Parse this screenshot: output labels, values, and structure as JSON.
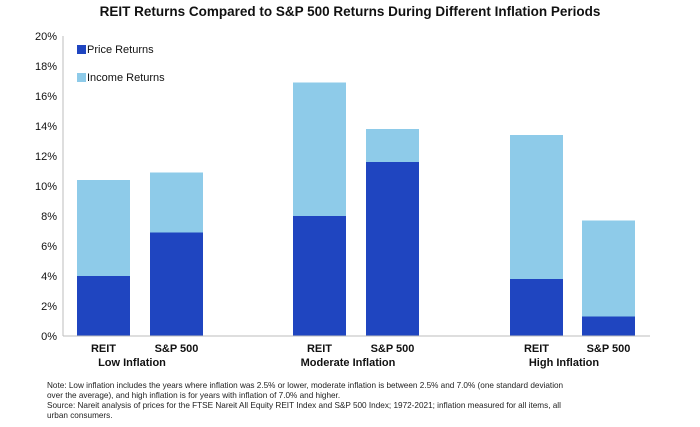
{
  "chart_data": {
    "type": "bar",
    "stacked": true,
    "title": "REIT Returns Compared to S&P 500 Returns During Different Inflation Periods",
    "y_ticks": [
      "0%",
      "2%",
      "4%",
      "6%",
      "8%",
      "10%",
      "12%",
      "14%",
      "16%",
      "18%",
      "20%"
    ],
    "ylim": [
      0,
      20
    ],
    "grid": false,
    "legend_position": "top-left",
    "groups": [
      "Low Inflation",
      "Moderate Inflation",
      "High Inflation"
    ],
    "categories": [
      "REIT",
      "S&P 500",
      "REIT",
      "S&P 500",
      "REIT",
      "S&P 500"
    ],
    "series": [
      {
        "name": "Price Returns",
        "color": "#1f45c0",
        "values": [
          4.0,
          6.9,
          8.0,
          11.6,
          3.8,
          1.3
        ]
      },
      {
        "name": "Income Returns",
        "color": "#8ecbe9",
        "values": [
          6.4,
          4.0,
          8.9,
          2.2,
          9.6,
          6.4
        ]
      }
    ]
  },
  "notes": {
    "line1": "Note: Low inflation includes the years where inflation was 2.5% or lower, moderate inflation is between 2.5% and 7.0% (one standard deviation",
    "line2": "over the average), and high inflation is for years with inflation of 7.0% and higher.",
    "line3": "Source: Nareit analysis of prices for the FTSE Nareit All Equity REIT Index and S&P 500 Index; 1972-2021; inflation measured for all items, all",
    "line4": "urban consumers."
  }
}
